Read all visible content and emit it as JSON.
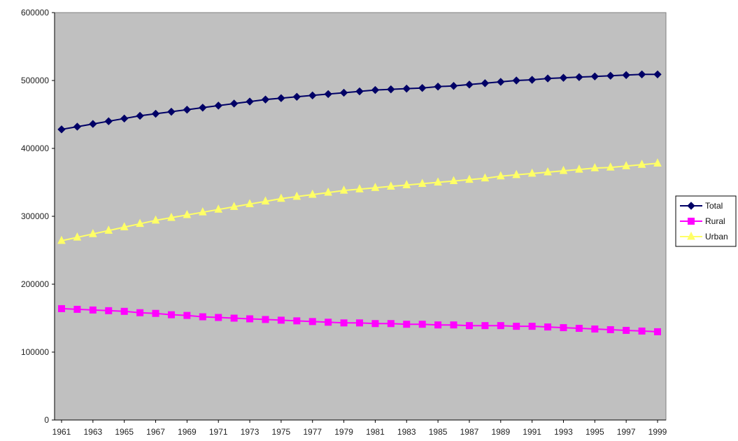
{
  "chart_data": {
    "type": "line",
    "title": "",
    "xlabel": "",
    "ylabel": "",
    "x": [
      1961,
      1962,
      1963,
      1964,
      1965,
      1966,
      1967,
      1968,
      1969,
      1970,
      1971,
      1972,
      1973,
      1974,
      1975,
      1976,
      1977,
      1978,
      1979,
      1980,
      1981,
      1982,
      1983,
      1984,
      1985,
      1986,
      1987,
      1988,
      1989,
      1990,
      1991,
      1992,
      1993,
      1994,
      1995,
      1996,
      1997,
      1998,
      1999
    ],
    "x_tick_labels": [
      "1961",
      "1963",
      "1965",
      "1967",
      "1969",
      "1971",
      "1973",
      "1975",
      "1977",
      "1979",
      "1981",
      "1983",
      "1985",
      "1987",
      "1989",
      "1991",
      "1993",
      "1995",
      "1997",
      "1999"
    ],
    "ylim": [
      0,
      600000
    ],
    "y_tick_labels": [
      "0",
      "100000",
      "200000",
      "300000",
      "400000",
      "500000",
      "600000"
    ],
    "grid": false,
    "legend_placement": "right",
    "plot_background": "#c0c0c0",
    "series": [
      {
        "name": "Total",
        "color": "#000066",
        "marker": "diamond",
        "values": [
          428000,
          432000,
          436000,
          440000,
          444000,
          448000,
          451000,
          454000,
          457000,
          460000,
          463000,
          466000,
          469000,
          472000,
          474000,
          476000,
          478000,
          480000,
          482000,
          484000,
          486000,
          487000,
          488000,
          489000,
          491000,
          492000,
          494000,
          496000,
          498000,
          500000,
          501000,
          503000,
          504000,
          505000,
          506000,
          507000,
          508000,
          509000,
          509000
        ]
      },
      {
        "name": "Rural",
        "color": "#ff00ff",
        "marker": "square",
        "values": [
          164000,
          163000,
          162000,
          161000,
          160000,
          158000,
          157000,
          155000,
          154000,
          152000,
          151000,
          150000,
          149000,
          148000,
          147000,
          146000,
          145000,
          144000,
          143000,
          143000,
          142000,
          142000,
          141000,
          141000,
          140000,
          140000,
          139000,
          139000,
          139000,
          138000,
          138000,
          137000,
          136000,
          135000,
          134000,
          133000,
          132000,
          131000,
          130000
        ]
      },
      {
        "name": "Urban",
        "color": "#ffff66",
        "marker": "triangle",
        "values": [
          264000,
          269000,
          274000,
          279000,
          284000,
          289000,
          294000,
          298000,
          302000,
          306000,
          310000,
          314000,
          318000,
          322000,
          326000,
          329000,
          332000,
          335000,
          338000,
          340000,
          342000,
          344000,
          346000,
          348000,
          350000,
          352000,
          354000,
          356000,
          359000,
          361000,
          363000,
          365000,
          367000,
          369000,
          371000,
          372000,
          374000,
          376000,
          378000
        ]
      }
    ]
  }
}
